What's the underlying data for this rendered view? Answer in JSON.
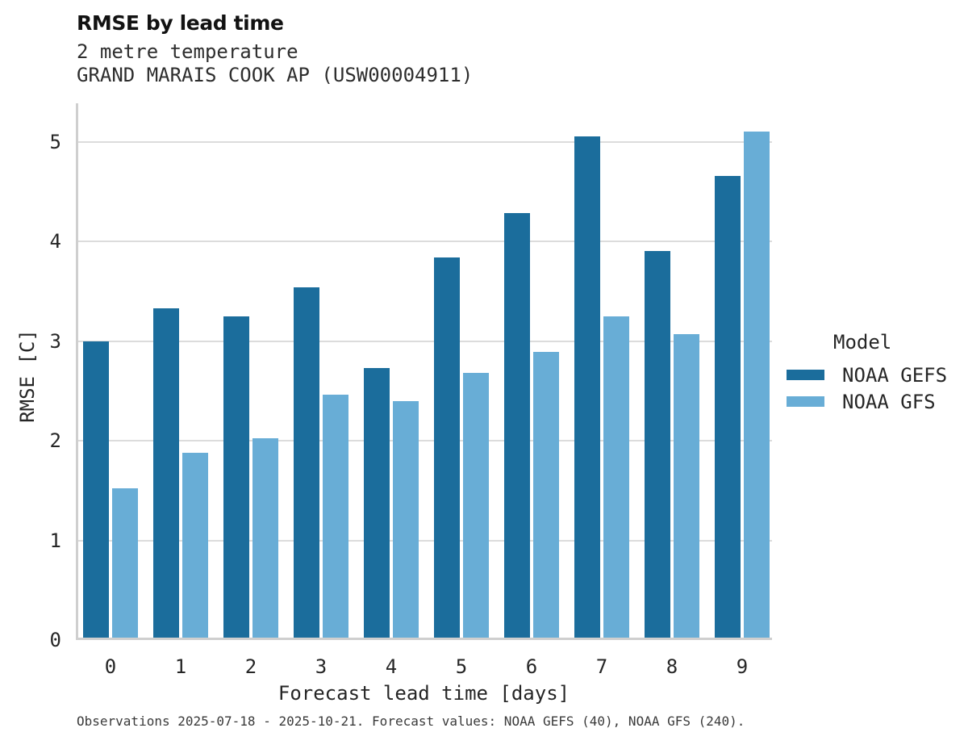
{
  "header": {
    "title": "RMSE by lead time",
    "subtitle_variable": "2 metre temperature",
    "subtitle_station": "GRAND MARAIS COOK AP (USW00004911)"
  },
  "legend": {
    "title": "Model",
    "entries": [
      {
        "label": "NOAA GEFS",
        "color": "#1b6d9c"
      },
      {
        "label": "NOAA GFS",
        "color": "#68add6"
      }
    ]
  },
  "footer": {
    "note": "Observations 2025-07-18 - 2025-10-21. Forecast values: NOAA GEFS (40), NOAA GFS (240)."
  },
  "colors": {
    "noaa_gefs": "#1b6d9c",
    "noaa_gfs": "#68add6",
    "gridline": "#dcdcdc",
    "spine": "#cfcfcf",
    "text": "#262626"
  },
  "chart_data": {
    "type": "bar",
    "title": "RMSE by lead time",
    "subtitle": [
      "2 metre temperature",
      "GRAND MARAIS COOK AP (USW00004911)"
    ],
    "categories": [
      "0",
      "1",
      "2",
      "3",
      "4",
      "5",
      "6",
      "7",
      "8",
      "9"
    ],
    "series": [
      {
        "name": "NOAA GEFS",
        "color": "#1b6d9c",
        "values": [
          3.0,
          3.33,
          3.25,
          3.54,
          2.73,
          3.84,
          4.29,
          5.06,
          3.91,
          4.66
        ]
      },
      {
        "name": "NOAA GFS",
        "color": "#68add6",
        "values": [
          1.52,
          1.88,
          2.03,
          2.46,
          2.4,
          2.68,
          2.89,
          3.25,
          3.07,
          5.11
        ]
      }
    ],
    "xlabel": "Forecast lead time [days]",
    "ylabel": "RMSE [C]",
    "ylim": [
      0,
      5.39
    ],
    "yticks": [
      "0",
      "1",
      "2",
      "3",
      "4",
      "5"
    ],
    "grid": "horizontal",
    "legend_title": "Model",
    "legend_position": "right-center-outside"
  }
}
